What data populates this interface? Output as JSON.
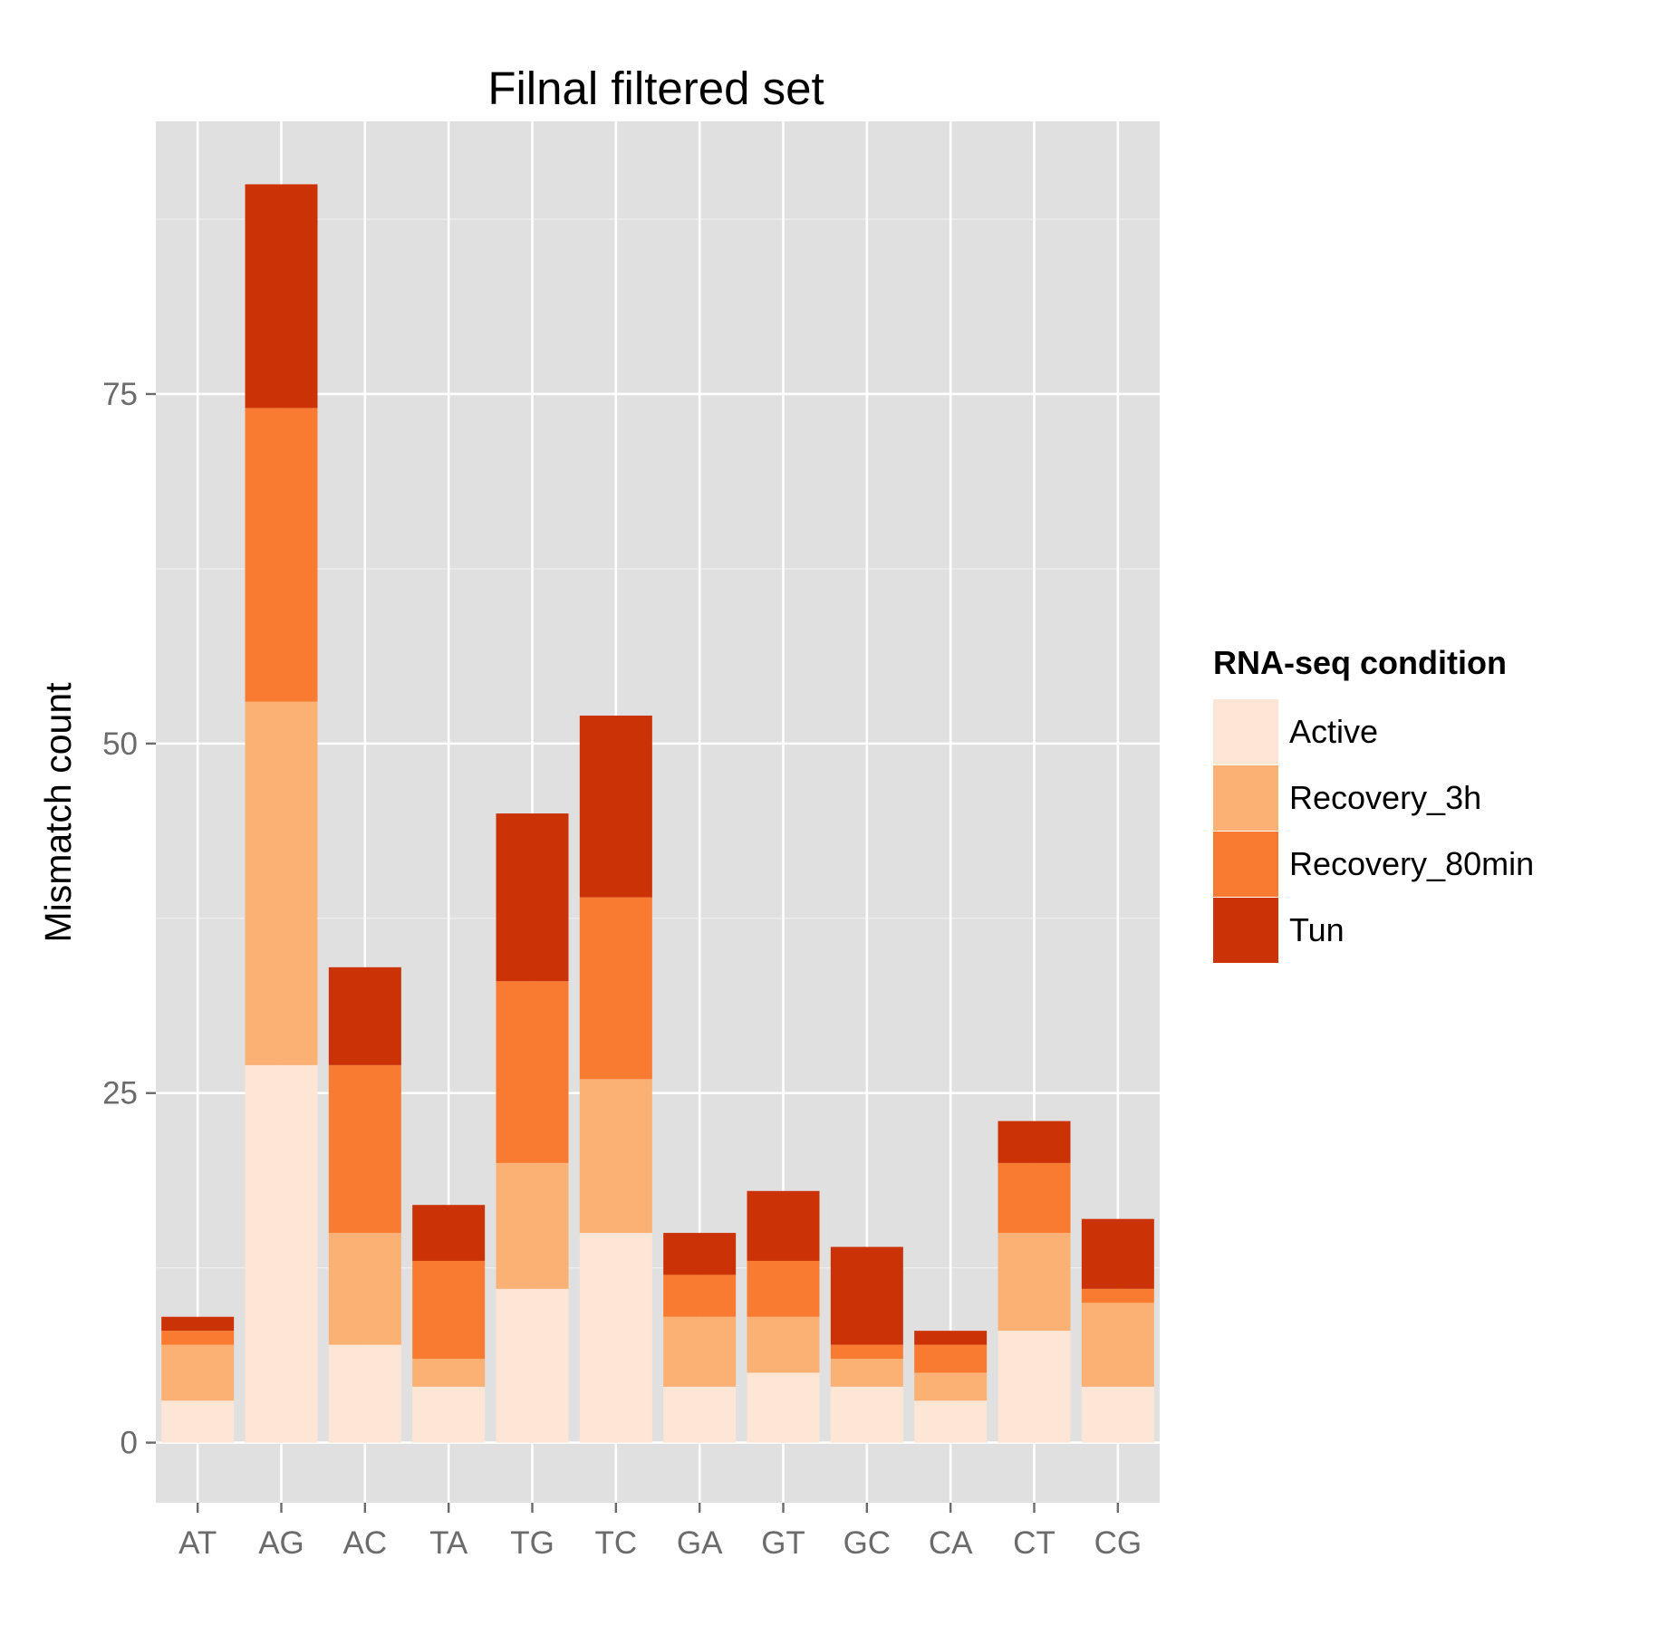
{
  "chart_data": {
    "type": "bar",
    "stacked": true,
    "title": "Filnal filtered set",
    "xlabel": "",
    "ylabel": "Mismatch count",
    "categories": [
      "AT",
      "AG",
      "AC",
      "TA",
      "TG",
      "TC",
      "GA",
      "GT",
      "GC",
      "CA",
      "CT",
      "CG"
    ],
    "yticks": [
      0,
      25,
      50,
      75
    ],
    "ylim": [
      -4.3,
      94.5
    ],
    "grid": true,
    "legend": {
      "title": "RNA-seq condition",
      "position": "right"
    },
    "series": [
      {
        "name": "Active",
        "color": "#FDE6D5",
        "values": [
          3,
          27,
          7,
          4,
          11,
          15,
          4,
          5,
          4,
          3,
          8,
          4
        ]
      },
      {
        "name": "Recovery_3h",
        "color": "#FBB074",
        "values": [
          4,
          26,
          8,
          2,
          9,
          11,
          5,
          4,
          2,
          2,
          7,
          6
        ]
      },
      {
        "name": "Recovery_80min",
        "color": "#F97B31",
        "values": [
          1,
          21,
          12,
          7,
          13,
          13,
          3,
          4,
          1,
          2,
          5,
          1
        ]
      },
      {
        "name": "Tun",
        "color": "#CB3307",
        "values": [
          1,
          16,
          7,
          4,
          12,
          13,
          3,
          5,
          7,
          1,
          3,
          5
        ]
      }
    ],
    "colors": {
      "panel_background": "#E0E0E0",
      "grid_major": "#FFFFFF",
      "grid_minor": "#F0F0F0",
      "tick_label": "#6B6B6B",
      "text": "#000000"
    }
  }
}
